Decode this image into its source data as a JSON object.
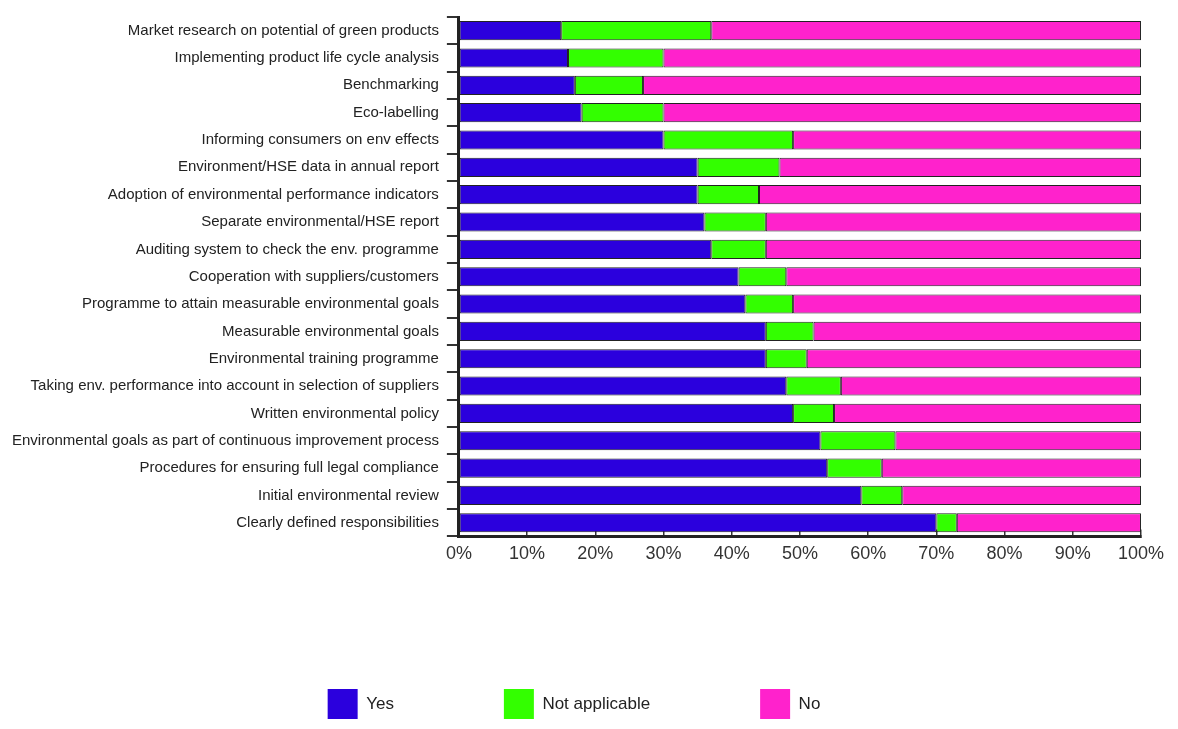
{
  "chart_data": {
    "type": "bar",
    "orientation": "horizontal",
    "stacked": true,
    "categories": [
      "Market research on potential of green products",
      "Implementing product life cycle analysis",
      "Benchmarking",
      "Eco-labelling",
      "Informing consumers on env effects",
      "Environment/HSE data in annual report",
      "Adoption of environmental performance indicators",
      "Separate environmental/HSE report",
      "Auditing system to check the env. programme",
      "Cooperation with suppliers/customers",
      "Programme to attain measurable environmental goals",
      "Measurable environmental goals",
      "Environmental training programme",
      "Taking env. performance into account in selection of suppliers",
      "Written environmental policy",
      "Environmental goals as part of continuous improvement process",
      "Procedures for ensuring full legal compliance",
      "Initial environmental review",
      "Clearly defined responsibilities"
    ],
    "series": [
      {
        "name": "Yes",
        "color": "#2b00dd",
        "values": [
          15,
          16,
          17,
          18,
          30,
          35,
          35,
          36,
          37,
          41,
          42,
          45,
          45,
          48,
          49,
          53,
          54,
          59,
          70
        ]
      },
      {
        "name": "Not applicable",
        "color": "#33ff00",
        "values": [
          22,
          14,
          10,
          12,
          19,
          12,
          9,
          9,
          8,
          7,
          7,
          7,
          6,
          8,
          6,
          11,
          8,
          6,
          3
        ]
      },
      {
        "name": "No",
        "color": "#ff22cc",
        "values": [
          63,
          70,
          73,
          70,
          51,
          53,
          56,
          55,
          55,
          52,
          51,
          48,
          49,
          44,
          45,
          36,
          38,
          35,
          27
        ]
      }
    ],
    "xlim": [
      0,
      100
    ],
    "xticks": [
      {
        "value": 0,
        "label": "0%"
      },
      {
        "value": 10,
        "label": "10%"
      },
      {
        "value": 20,
        "label": "20%"
      },
      {
        "value": 30,
        "label": "30%"
      },
      {
        "value": 40,
        "label": "40%"
      },
      {
        "value": 50,
        "label": "50%"
      },
      {
        "value": 60,
        "label": "60%"
      },
      {
        "value": 70,
        "label": "70%"
      },
      {
        "value": 80,
        "label": "80%"
      },
      {
        "value": 90,
        "label": "90%"
      },
      {
        "value": 100,
        "label": "100%"
      }
    ],
    "grid": false,
    "legend": "bottom"
  }
}
